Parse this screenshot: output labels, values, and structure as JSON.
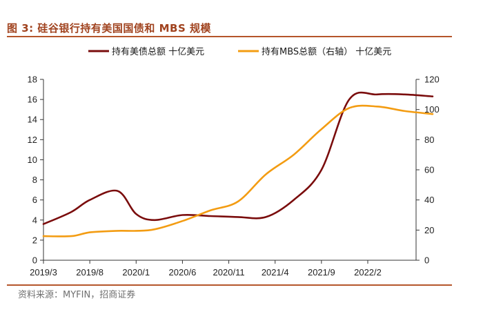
{
  "figure": {
    "title": "图 3:  硅谷银行持有美国国债和 MBS 规模",
    "source": "资料来源：MYFIN，招商证券"
  },
  "colors": {
    "accent": "#b5552a",
    "title": "#a0421e",
    "treasury": "#7a0c0c",
    "mbs": "#f39c12"
  },
  "chart_data": {
    "type": "line",
    "legend_position": "top",
    "grid": false,
    "x_ticks": [
      "2019/3",
      "2019/8",
      "2020/1",
      "2020/6",
      "2020/11",
      "2021/4",
      "2021/9",
      "2022/2"
    ],
    "x": [
      "2019/3",
      "2019/6",
      "2019/8",
      "2019/11",
      "2020/1",
      "2020/3",
      "2020/6",
      "2020/9",
      "2020/12",
      "2021/3",
      "2021/6",
      "2021/9",
      "2021/12",
      "2022/3",
      "2022/6",
      "2022/9"
    ],
    "y_left": {
      "range": [
        0,
        18
      ],
      "ticks": [
        "0",
        "2",
        "4",
        "6",
        "8",
        "10",
        "12",
        "14",
        "16",
        "18"
      ]
    },
    "y_right": {
      "range": [
        0,
        120
      ],
      "ticks": [
        "0",
        "20",
        "40",
        "60",
        "80",
        "100",
        "120"
      ]
    },
    "series": [
      {
        "name": "持有美债总额 十亿美元",
        "axis": "left",
        "color": "#7a0c0c",
        "values": [
          3.6,
          4.8,
          6.0,
          6.9,
          4.6,
          4.0,
          4.5,
          4.4,
          4.3,
          4.3,
          6.0,
          9.0,
          16.0,
          16.5,
          16.5,
          16.3
        ]
      },
      {
        "name": "持有MBS总额（右轴） 十亿美元",
        "axis": "right",
        "color": "#f39c12",
        "values": [
          16,
          16,
          18.5,
          19.5,
          19.5,
          20.5,
          26,
          33,
          39,
          57,
          70,
          87,
          101,
          102,
          99,
          97
        ]
      }
    ]
  }
}
